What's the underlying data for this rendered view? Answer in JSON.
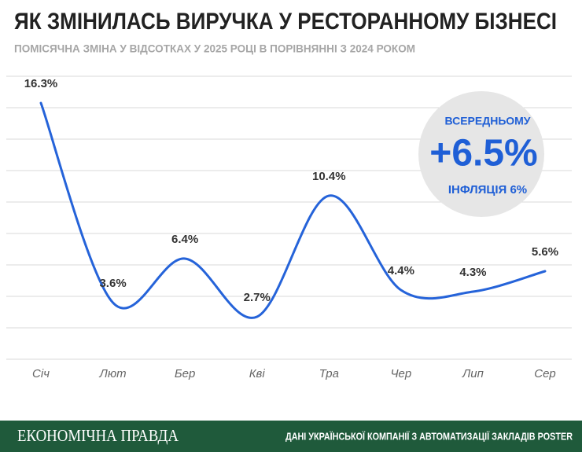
{
  "chart_data": {
    "type": "line",
    "title": "ЯК ЗМІНИЛАСЬ ВИРУЧКА У РЕСТОРАННОМУ БІЗНЕСІ",
    "subtitle": "ПОМІСЯЧНА ЗМІНА У ВІДСОТКАХ У 2025 РОЦІ В ПОРІВНЯННІ З 2024 РОКОМ",
    "categories": [
      "Січ",
      "Лют",
      "Бер",
      "Кві",
      "Тра",
      "Чер",
      "Лип",
      "Сер"
    ],
    "values": [
      16.3,
      3.6,
      6.4,
      2.7,
      10.4,
      4.4,
      4.3,
      5.6
    ],
    "value_labels": [
      "16.3%",
      "3.6%",
      "6.4%",
      "2.7%",
      "10.4%",
      "4.4%",
      "4.3%",
      "5.6%"
    ],
    "color": "#2563d9",
    "ylim": [
      0,
      18
    ],
    "yticks": [
      0,
      2,
      4,
      6,
      8,
      10,
      12,
      14,
      16,
      18
    ],
    "grid": true,
    "annotation": {
      "label": "ВСЕРЕДНЬОМУ",
      "value": "+6.5%",
      "note": "ІНФЛЯЦІЯ 6%"
    },
    "footer": {
      "brand": "ЕКОНОМІЧНА ПРАВДА",
      "source": "ДАНІ УКРАЇНСЬКОЇ КОМПАНІЇ З АВТОМАТИЗАЦІЇ ЗАКЛАДІВ POSTER"
    }
  }
}
